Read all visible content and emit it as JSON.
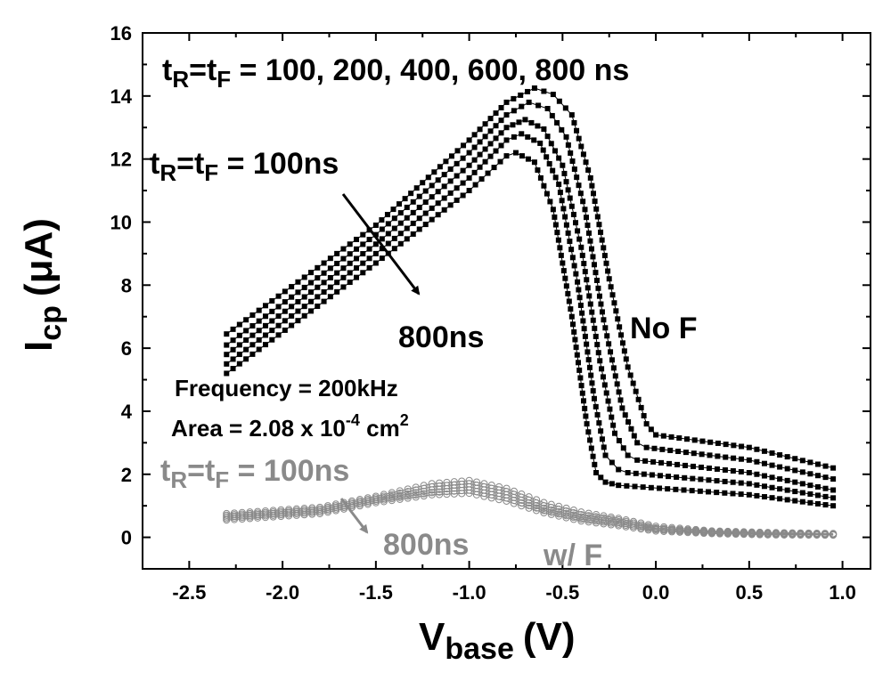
{
  "chart_data": {
    "type": "scatter",
    "xlabel": {
      "main": "V",
      "sub": "base",
      "unit": "(V)"
    },
    "ylabel": {
      "main": "I",
      "sub": "cp",
      "unit": "(μA)"
    },
    "xlim": [
      -2.75,
      1.15
    ],
    "ylim": [
      -1,
      16
    ],
    "xticks": [
      -2.5,
      -2.0,
      -1.5,
      -1.0,
      -0.5,
      0.0,
      0.5,
      1.0
    ],
    "xtick_labels": [
      "-2.5",
      "-2.0",
      "-1.5",
      "-1.0",
      "-0.5",
      "0.0",
      "0.5",
      "1.0"
    ],
    "yticks": [
      0,
      2,
      4,
      6,
      8,
      10,
      12,
      14,
      16
    ],
    "ytick_labels": [
      "0",
      "2",
      "4",
      "6",
      "8",
      "10",
      "12",
      "14",
      "16"
    ],
    "series": [
      {
        "name": "No F, tR=tF=100ns",
        "group": "No F",
        "color": "#000000",
        "marker": "filled-square",
        "x": [
          -2.3,
          -1.5,
          -1.0,
          -0.8,
          -0.65,
          -0.55,
          -0.45,
          -0.35,
          -0.25,
          -0.15,
          -0.05,
          0.0,
          0.5,
          0.95
        ],
        "y": [
          6.45,
          9.9,
          12.6,
          13.8,
          14.25,
          14.05,
          13.4,
          11.4,
          8.2,
          5.4,
          3.6,
          3.25,
          2.85,
          2.2
        ]
      },
      {
        "name": "No F, tR=tF=200ns",
        "group": "No F",
        "color": "#000000",
        "marker": "filled-square",
        "x": [
          -2.3,
          -1.5,
          -1.0,
          -0.8,
          -0.68,
          -0.58,
          -0.48,
          -0.38,
          -0.28,
          -0.18,
          -0.1,
          -0.05,
          0.5,
          0.95
        ],
        "y": [
          6.1,
          9.6,
          12.2,
          13.4,
          13.8,
          13.6,
          12.7,
          10.4,
          6.9,
          4.1,
          3.0,
          2.85,
          2.45,
          1.85
        ]
      },
      {
        "name": "No F, tR=tF=400ns",
        "group": "No F",
        "color": "#000000",
        "marker": "filled-square",
        "x": [
          -2.3,
          -1.5,
          -1.0,
          -0.8,
          -0.7,
          -0.6,
          -0.5,
          -0.4,
          -0.3,
          -0.22,
          -0.15,
          -0.1,
          0.5,
          0.95
        ],
        "y": [
          5.8,
          9.3,
          11.8,
          13.0,
          13.25,
          12.95,
          11.8,
          9.2,
          5.6,
          3.3,
          2.6,
          2.45,
          2.05,
          1.5
        ]
      },
      {
        "name": "No F, tR=tF=600ns",
        "group": "No F",
        "color": "#000000",
        "marker": "filled-square",
        "x": [
          -2.3,
          -1.5,
          -1.0,
          -0.8,
          -0.72,
          -0.62,
          -0.52,
          -0.42,
          -0.33,
          -0.27,
          -0.2,
          -0.15,
          0.5,
          0.95
        ],
        "y": [
          5.5,
          9.0,
          11.4,
          12.6,
          12.8,
          12.5,
          11.2,
          8.1,
          4.4,
          2.6,
          2.15,
          2.05,
          1.7,
          1.25
        ]
      },
      {
        "name": "No F, tR=tF=800ns",
        "group": "No F",
        "color": "#000000",
        "marker": "filled-square",
        "x": [
          -2.3,
          -1.5,
          -1.0,
          -0.8,
          -0.75,
          -0.65,
          -0.55,
          -0.45,
          -0.37,
          -0.32,
          -0.27,
          -0.2,
          0.5,
          0.95
        ],
        "y": [
          5.2,
          8.7,
          11.0,
          12.1,
          12.2,
          11.9,
          10.4,
          7.0,
          3.6,
          2.05,
          1.75,
          1.65,
          1.35,
          1.0
        ]
      },
      {
        "name": "w/ F, tR=tF=100ns",
        "group": "w/ F",
        "color": "#8a8a8a",
        "marker": "open-circle",
        "x": [
          -2.3,
          -1.8,
          -1.5,
          -1.2,
          -1.0,
          -0.8,
          -0.6,
          -0.4,
          -0.2,
          0.0,
          0.3,
          0.6,
          0.95
        ],
        "y": [
          0.75,
          0.95,
          1.3,
          1.7,
          1.8,
          1.55,
          1.1,
          0.8,
          0.6,
          0.35,
          0.2,
          0.15,
          0.12
        ]
      },
      {
        "name": "w/ F, tR=tF=200ns",
        "group": "w/ F",
        "color": "#8a8a8a",
        "marker": "open-circle",
        "x": [
          -2.3,
          -1.8,
          -1.5,
          -1.2,
          -1.0,
          -0.8,
          -0.6,
          -0.4,
          -0.2,
          0.0,
          0.3,
          0.6,
          0.95
        ],
        "y": [
          0.7,
          0.9,
          1.25,
          1.6,
          1.7,
          1.45,
          1.0,
          0.72,
          0.55,
          0.3,
          0.18,
          0.13,
          0.1
        ]
      },
      {
        "name": "w/ F, tR=tF=400ns",
        "group": "w/ F",
        "color": "#8a8a8a",
        "marker": "open-circle",
        "x": [
          -2.3,
          -1.8,
          -1.5,
          -1.2,
          -1.0,
          -0.8,
          -0.6,
          -0.4,
          -0.2,
          0.0,
          0.3,
          0.6,
          0.95
        ],
        "y": [
          0.65,
          0.85,
          1.2,
          1.5,
          1.6,
          1.35,
          0.92,
          0.65,
          0.48,
          0.27,
          0.16,
          0.12,
          0.1
        ]
      },
      {
        "name": "w/ F, tR=tF=600ns",
        "group": "w/ F",
        "color": "#8a8a8a",
        "marker": "open-circle",
        "x": [
          -2.3,
          -1.8,
          -1.5,
          -1.2,
          -1.0,
          -0.8,
          -0.6,
          -0.4,
          -0.2,
          0.0,
          0.3,
          0.6,
          0.95
        ],
        "y": [
          0.6,
          0.8,
          1.15,
          1.42,
          1.5,
          1.25,
          0.85,
          0.58,
          0.42,
          0.24,
          0.14,
          0.1,
          0.08
        ]
      },
      {
        "name": "w/ F, tR=tF=800ns",
        "group": "w/ F",
        "color": "#8a8a8a",
        "marker": "open-circle",
        "x": [
          -2.3,
          -1.8,
          -1.5,
          -1.2,
          -1.0,
          -0.8,
          -0.6,
          -0.4,
          -0.2,
          0.0,
          0.3,
          0.6,
          0.95
        ],
        "y": [
          0.55,
          0.75,
          1.1,
          1.35,
          1.4,
          1.15,
          0.78,
          0.52,
          0.37,
          0.2,
          0.12,
          0.08,
          0.07
        ]
      }
    ],
    "annotations": {
      "top_title": {
        "pre": "t",
        "sub1": "R",
        "mid": "=t",
        "sub2": "F",
        "post": " = 100, 200, 400, 600, 800 ns"
      },
      "nof_start": {
        "pre": "t",
        "sub1": "R",
        "mid": "=t",
        "sub2": "F",
        "post": " = 100ns"
      },
      "nof_end": "800ns",
      "nof_label": "No F",
      "frequency": "Frequency = 200kHz",
      "area": {
        "pre": "Area = 2.08 x 10",
        "exp": "-4",
        "mid": " cm",
        "exp2": "2"
      },
      "wf_start": {
        "pre": "t",
        "sub1": "R",
        "mid": "=t",
        "sub2": "F",
        "post": " = 100ns"
      },
      "wf_end": "800ns",
      "wf_label": "w/ F"
    },
    "colors": {
      "no_f": "#000000",
      "w_f": "#8a8a8a",
      "background": "#ffffff"
    }
  }
}
